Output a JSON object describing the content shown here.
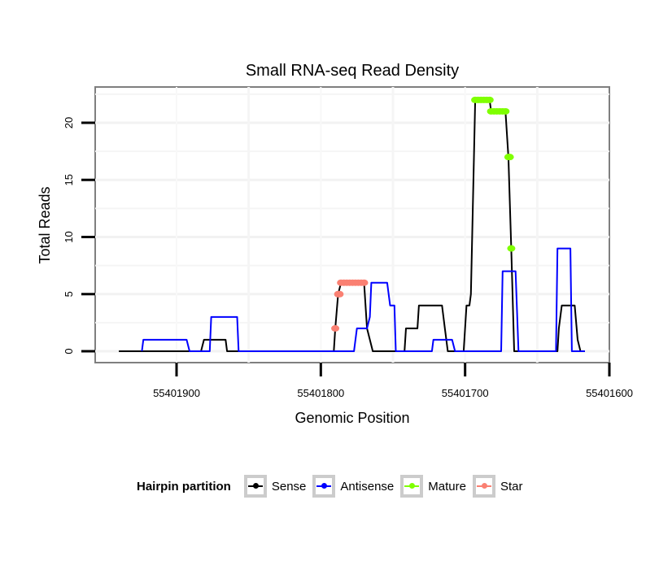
{
  "chart_data": {
    "type": "line",
    "title": "Small RNA-seq Read Density",
    "xlabel": "Genomic Position",
    "ylabel": "Total Reads",
    "x_reversed": true,
    "xlim": [
      55401960,
      55401600
    ],
    "ylim": [
      -1,
      23
    ],
    "xticks": [
      55401900,
      55401800,
      55401700,
      55401600
    ],
    "xtick_labels": [
      "55401900",
      "55401800",
      "55401700",
      "55401600"
    ],
    "yticks": [
      0,
      5,
      10,
      15,
      20
    ],
    "ytick_labels": [
      "0",
      "5",
      "10",
      "15",
      "20"
    ],
    "grid": true,
    "legend": {
      "title": "Hairpin partition",
      "placement": "bottom",
      "entries": [
        {
          "name": "Sense",
          "color": "#000000"
        },
        {
          "name": "Antisense",
          "color": "#0000ff"
        },
        {
          "name": "Mature",
          "color": "#7fff00"
        },
        {
          "name": "Star",
          "color": "#fa8072"
        }
      ]
    },
    "series": [
      {
        "name": "Sense",
        "color": "#000000",
        "style": "line",
        "x": [
          55401940,
          55401883,
          55401881,
          55401866,
          55401865,
          55401791,
          55401790,
          55401788,
          55401786,
          55401770,
          55401768,
          55401764,
          55401742,
          55401741,
          55401733,
          55401732,
          55401716,
          55401714,
          55401712,
          55401701,
          55401699,
          55401697,
          55401696,
          55401693,
          55401683,
          55401682,
          55401672,
          55401670,
          55401668,
          55401666,
          55401636,
          55401635,
          55401633,
          55401624,
          55401622,
          55401620,
          55401617
        ],
        "y": [
          0,
          0,
          1,
          1,
          0,
          0,
          2,
          5,
          6,
          6,
          2,
          0,
          0,
          2,
          2,
          4,
          4,
          2,
          0,
          0,
          4,
          4,
          5,
          22,
          22,
          21,
          21,
          17,
          9,
          0,
          0,
          2,
          4,
          4,
          1,
          0,
          0
        ]
      },
      {
        "name": "Antisense",
        "color": "#0000ff",
        "style": "line",
        "x": [
          55401924,
          55401923,
          55401893,
          55401891,
          55401877,
          55401876,
          55401858,
          55401857,
          55401777,
          55401775,
          55401768,
          55401766,
          55401765,
          55401754,
          55401752,
          55401749,
          55401748,
          55401723,
          55401722,
          55401709,
          55401707,
          55401675,
          55401674,
          55401665,
          55401663,
          55401637,
          55401636,
          55401627,
          55401626,
          55401621,
          55401617
        ],
        "y": [
          0,
          1,
          1,
          0,
          0,
          3,
          3,
          0,
          0,
          2,
          2,
          3,
          6,
          6,
          4,
          4,
          0,
          0,
          1,
          1,
          0,
          0,
          7,
          7,
          0,
          0,
          9,
          9,
          0,
          0,
          0
        ]
      },
      {
        "name": "Mature",
        "color": "#7fff00",
        "style": "points",
        "x": [
          55401693,
          55401691,
          55401689,
          55401687,
          55401685,
          55401683,
          55401682,
          55401680,
          55401678,
          55401676,
          55401674,
          55401672,
          55401670,
          55401669,
          55401668
        ],
        "y": [
          22,
          22,
          22,
          22,
          22,
          22,
          21,
          21,
          21,
          21,
          21,
          21,
          17,
          17,
          9
        ]
      },
      {
        "name": "Star",
        "color": "#fa8072",
        "style": "points",
        "x": [
          55401790,
          55401788,
          55401787,
          55401786,
          55401784,
          55401782,
          55401780,
          55401778,
          55401776,
          55401774,
          55401772,
          55401770
        ],
        "y": [
          2,
          5,
          5,
          6,
          6,
          6,
          6,
          6,
          6,
          6,
          6,
          6
        ]
      }
    ]
  }
}
